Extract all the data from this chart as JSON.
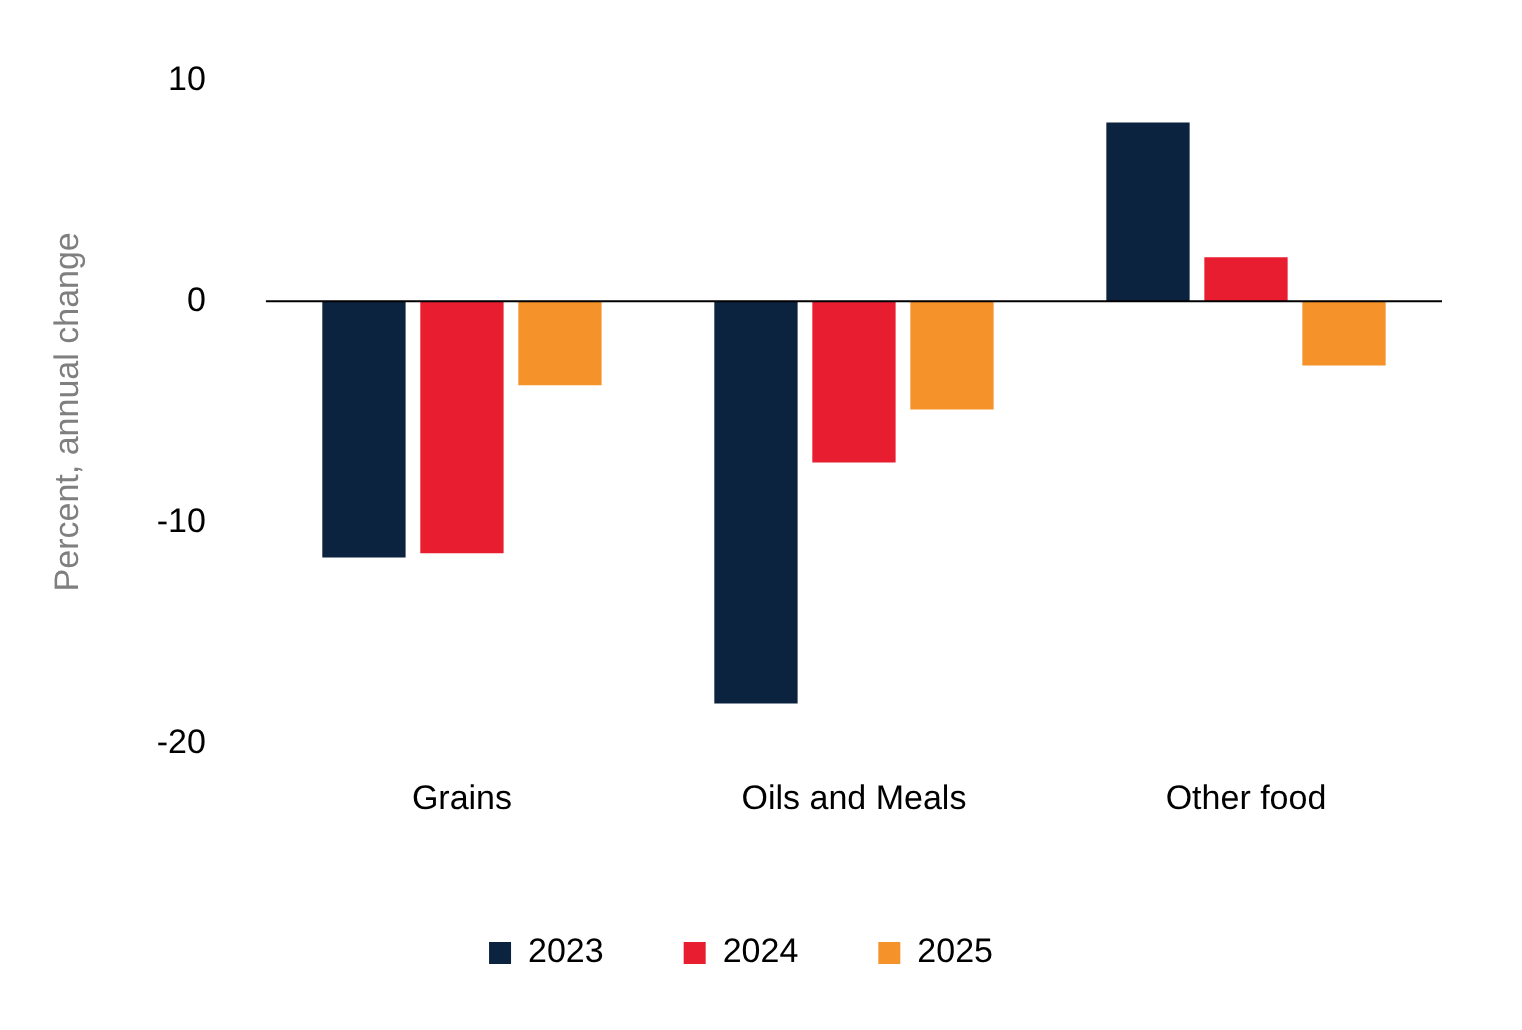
{
  "chart_data": {
    "type": "bar",
    "ylabel": "Percent, annual change",
    "categories": [
      "Grains",
      "Oils and Meals",
      "Other food"
    ],
    "series": [
      {
        "name": "2023",
        "color": "#0c2340",
        "values": [
          -11.6,
          -18.2,
          8.1
        ]
      },
      {
        "name": "2024",
        "color": "#e81e30",
        "values": [
          -11.4,
          -7.3,
          2.0
        ]
      },
      {
        "name": "2025",
        "color": "#f5922a",
        "values": [
          -3.8,
          -4.9,
          -2.9
        ]
      }
    ],
    "ylim": [
      -20,
      10
    ],
    "yticks": [
      -20,
      -10,
      0,
      10
    ],
    "legend": "bottom"
  }
}
